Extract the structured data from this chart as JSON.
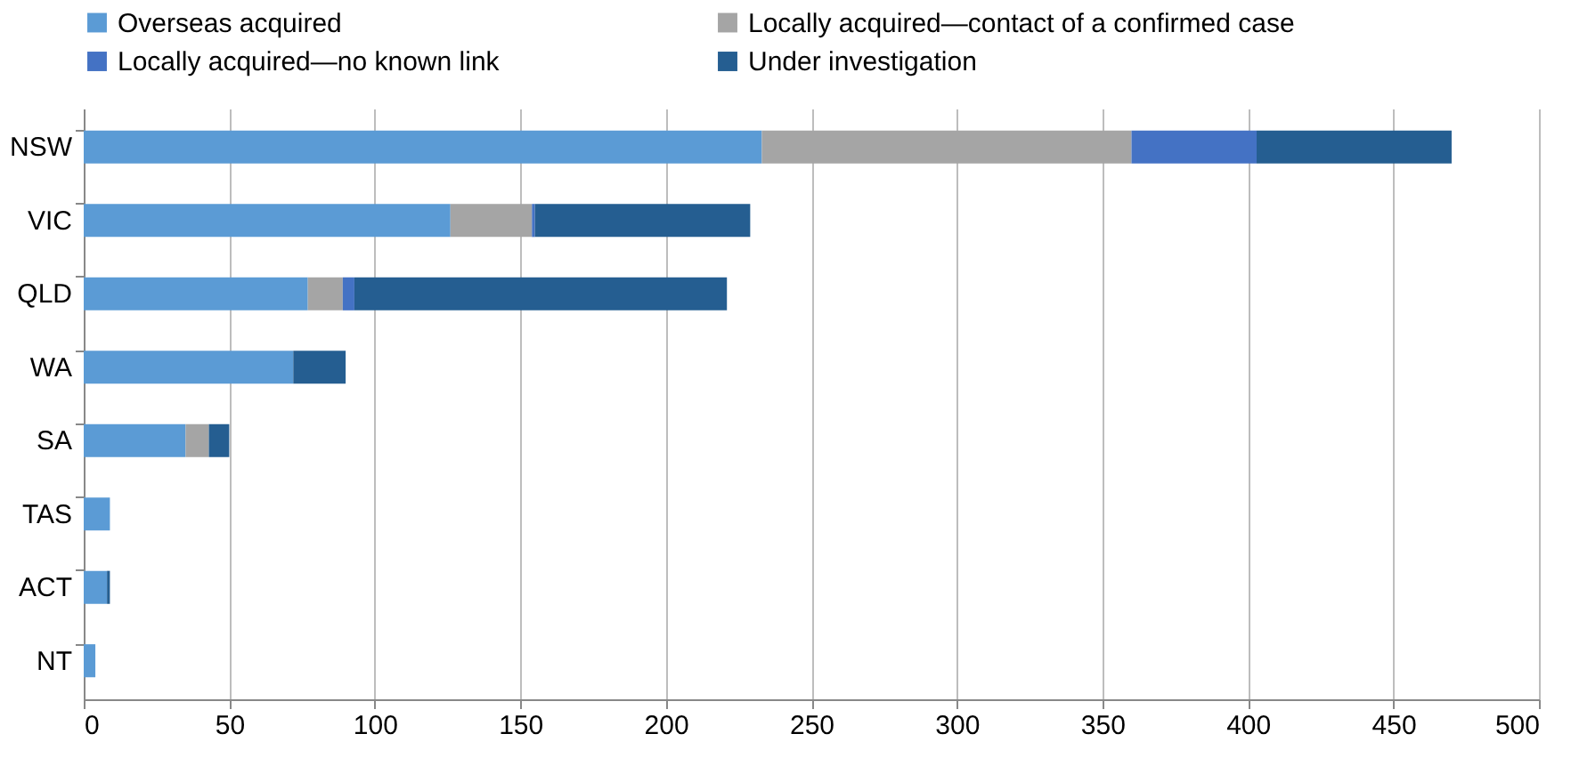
{
  "chart_data": {
    "type": "bar",
    "orientation": "horizontal",
    "stacked": true,
    "categories": [
      "NSW",
      "VIC",
      "QLD",
      "WA",
      "SA",
      "TAS",
      "ACT",
      "NT"
    ],
    "series": [
      {
        "name": "Overseas acquired",
        "color": "#5b9bd5",
        "values": [
          233,
          126,
          77,
          72,
          35,
          9,
          8,
          4
        ]
      },
      {
        "name": "Locally acquired—contact of a confirmed case",
        "color": "#a5a5a5",
        "values": [
          127,
          28,
          12,
          0,
          8,
          0,
          0,
          0
        ]
      },
      {
        "name": "Locally acquired—no known link",
        "color": "#4472c4",
        "values": [
          43,
          1,
          4,
          0,
          0,
          0,
          0,
          0
        ]
      },
      {
        "name": "Under investigation",
        "color": "#255e91",
        "values": [
          67,
          74,
          128,
          18,
          7,
          0,
          1,
          0
        ]
      }
    ],
    "xlim": [
      0,
      500
    ],
    "xticks": [
      0,
      50,
      100,
      150,
      200,
      250,
      300,
      350,
      400,
      450,
      500
    ],
    "grid": "x",
    "legend": "top"
  }
}
